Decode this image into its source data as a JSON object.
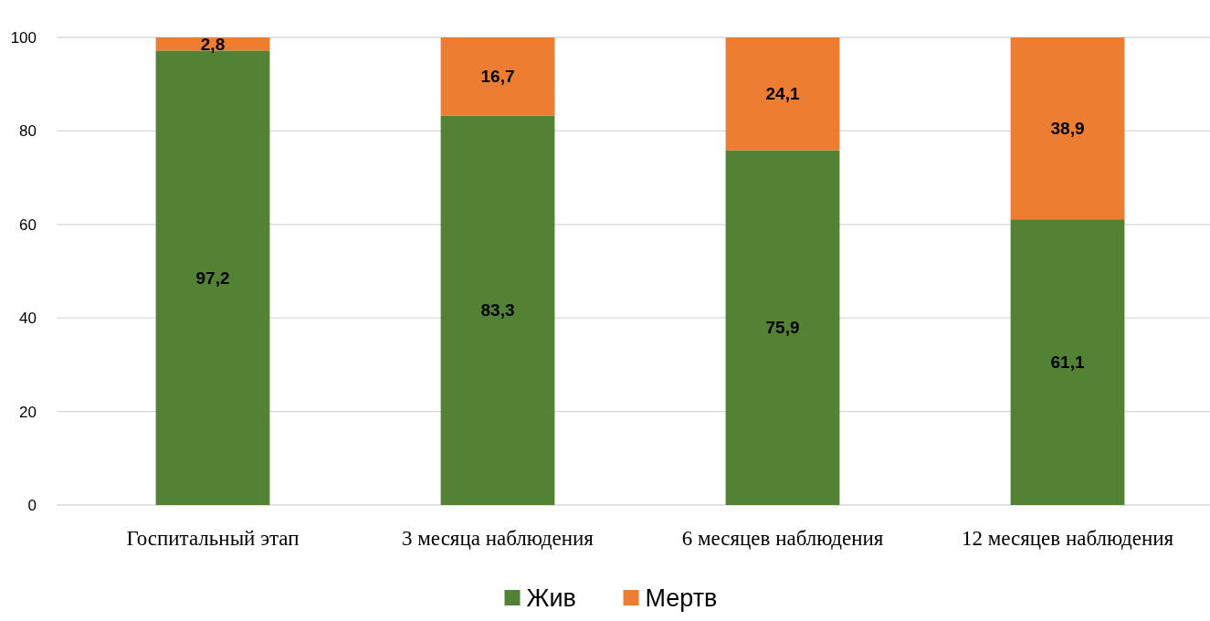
{
  "chart_data": {
    "type": "bar",
    "stacked": true,
    "categories": [
      "Госпитальный этап",
      "3 месяца наблюдения",
      "6 месяцев наблюдения",
      "12 месяцев наблюдения"
    ],
    "series": [
      {
        "name": "Жив",
        "color": "#548235",
        "values": [
          97.2,
          83.3,
          75.9,
          61.1
        ],
        "value_labels": [
          "97,2",
          "83,3",
          "75,9",
          "61,1"
        ]
      },
      {
        "name": "Мертв",
        "color": "#ed7d31",
        "values": [
          2.8,
          16.7,
          24.1,
          38.9
        ],
        "value_labels": [
          "2,8",
          "16,7",
          "24,1",
          "38,9"
        ]
      }
    ],
    "ylim": [
      0,
      100
    ],
    "yticks": [
      0,
      20,
      40,
      60,
      80,
      100
    ],
    "grid": "y",
    "legend": "bottom"
  }
}
